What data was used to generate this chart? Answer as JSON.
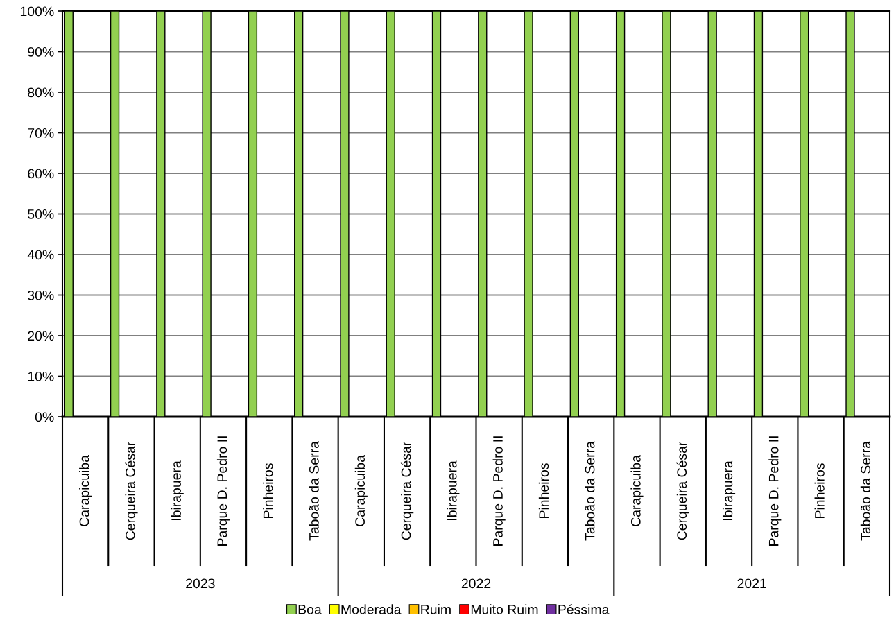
{
  "chart_data": {
    "type": "bar",
    "categories": [
      "Carapicuiba",
      "Cerqueira César",
      "Ibirapuera",
      "Parque D. Pedro II",
      "Pinheiros",
      "Taboão da Serra",
      "Carapicuiba",
      "Cerqueira César",
      "Ibirapuera",
      "Parque D. Pedro II",
      "Pinheiros",
      "Taboão da Serra",
      "Carapicuiba",
      "Cerqueira César",
      "Ibirapuera",
      "Parque D. Pedro II",
      "Pinheiros",
      "Taboão da Serra"
    ],
    "series": [
      {
        "name": "Boa",
        "color": "#92d050",
        "values": [
          100,
          100,
          100,
          100,
          100,
          100,
          100,
          100,
          100,
          100,
          100,
          100,
          100,
          100,
          100,
          100,
          100,
          100
        ]
      },
      {
        "name": "Moderada",
        "color": "#ffff00",
        "values": [
          0,
          0,
          0,
          0,
          0,
          0,
          0,
          0,
          0,
          0,
          0,
          0,
          0,
          0,
          0,
          0,
          0,
          0
        ]
      },
      {
        "name": "Ruim",
        "color": "#ffc000",
        "values": [
          0,
          0,
          0,
          0,
          0,
          0,
          0,
          0,
          0,
          0,
          0,
          0,
          0,
          0,
          0,
          0,
          0,
          0
        ]
      },
      {
        "name": "Muito Ruim",
        "color": "#ff0000",
        "values": [
          0,
          0,
          0,
          0,
          0,
          0,
          0,
          0,
          0,
          0,
          0,
          0,
          0,
          0,
          0,
          0,
          0,
          0
        ]
      },
      {
        "name": "Péssima",
        "color": "#7030a0",
        "values": [
          0,
          0,
          0,
          0,
          0,
          0,
          0,
          0,
          0,
          0,
          0,
          0,
          0,
          0,
          0,
          0,
          0,
          0
        ]
      }
    ],
    "annotations": [
      "2023",
      "2022",
      "2021"
    ],
    "ylim": [
      0,
      100
    ],
    "yticks": [
      {
        "value": 0,
        "label": "0%"
      },
      {
        "value": 10,
        "label": "10%"
      },
      {
        "value": 20,
        "label": "20%"
      },
      {
        "value": 30,
        "label": "30%"
      },
      {
        "value": 40,
        "label": "40%"
      },
      {
        "value": 50,
        "label": "50%"
      },
      {
        "value": 60,
        "label": "60%"
      },
      {
        "value": 70,
        "label": "70%"
      },
      {
        "value": 80,
        "label": "80%"
      },
      {
        "value": 90,
        "label": "90%"
      },
      {
        "value": 100,
        "label": "100%"
      }
    ],
    "grid": "y",
    "legend": "bottom"
  }
}
